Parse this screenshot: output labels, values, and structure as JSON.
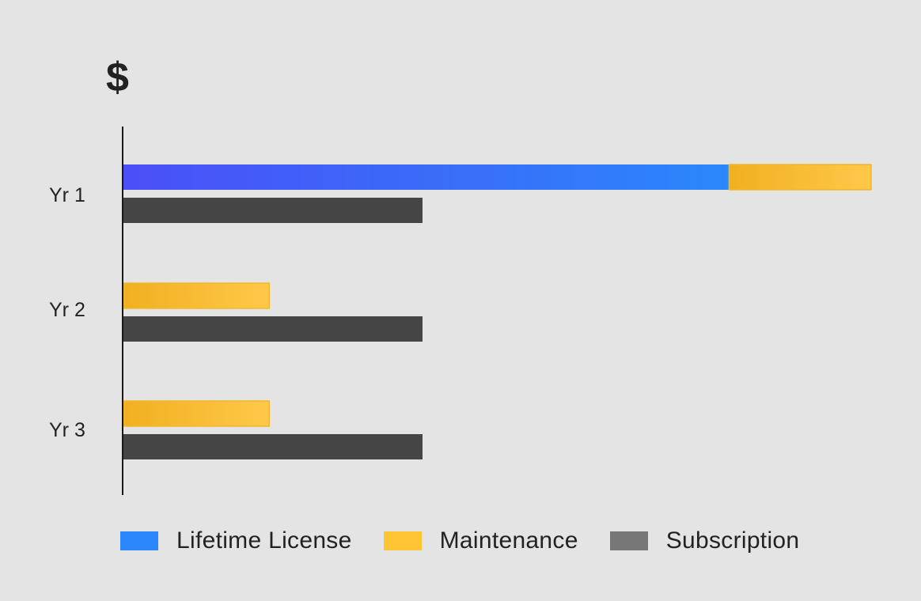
{
  "chart_data": {
    "type": "bar",
    "orientation": "horizontal",
    "stacked_groups": true,
    "title": "",
    "xlabel": "",
    "ylabel": "$",
    "categories": [
      "Yr 1",
      "Yr 2",
      "Yr 3"
    ],
    "xlim": [
      0,
      100
    ],
    "grid": false,
    "legend_position": "bottom",
    "series": [
      {
        "name": "Lifetime License",
        "color": "#2b87fb",
        "stack": "own",
        "values": [
          81,
          0,
          0
        ]
      },
      {
        "name": "Maintenance",
        "color": "#ffc534",
        "stack": "own",
        "values": [
          19,
          19.5,
          19.5
        ]
      },
      {
        "name": "Subscription",
        "color": "#454545",
        "stack": "sub",
        "values": [
          40,
          40,
          40
        ]
      }
    ]
  },
  "legend": {
    "items": [
      {
        "label": "Lifetime License",
        "color": "#2b87fb"
      },
      {
        "label": "Maintenance",
        "color": "#ffc534"
      },
      {
        "label": "Subscription",
        "color": "#777777"
      }
    ]
  }
}
